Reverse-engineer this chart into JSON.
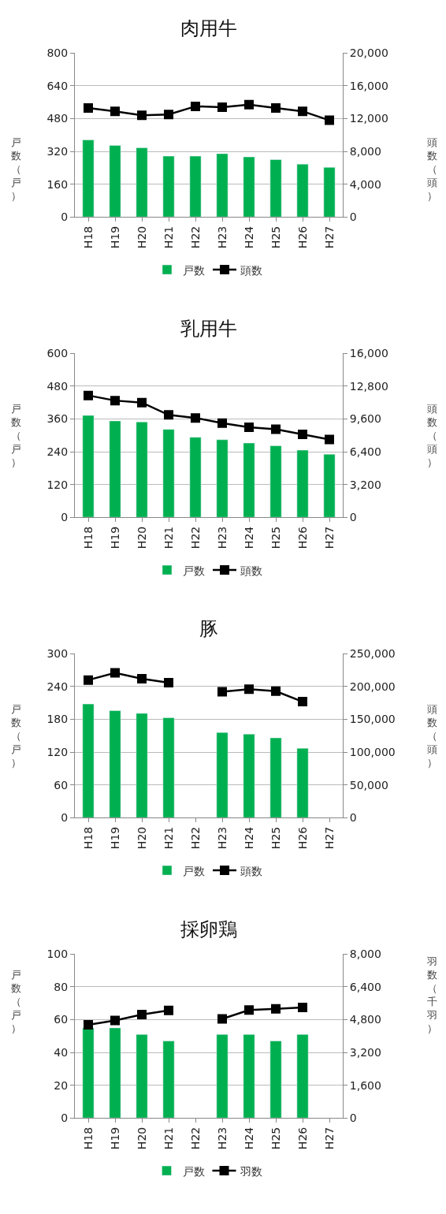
{
  "chart_data": [
    {
      "type": "bar",
      "title": "肉用牛",
      "ylabel": "戸数（戸）",
      "y2label": "頭数（頭）",
      "categories": [
        "H18",
        "H19",
        "H20",
        "H21",
        "H22",
        "H23",
        "H24",
        "H25",
        "H26",
        "H27"
      ],
      "series": [
        {
          "name": "戸数",
          "color": "#00b050",
          "values": [
            376,
            349,
            338,
            297,
            297,
            309,
            293,
            280,
            258,
            242
          ]
        },
        {
          "name": "頭数",
          "type": "line",
          "axis": "y2",
          "color": "#000000",
          "marker": "square",
          "values": [
            13300,
            12900,
            12400,
            12500,
            13500,
            13400,
            13700,
            13300,
            12900,
            11800
          ]
        }
      ],
      "ylim": [
        0,
        800
      ],
      "yticks": [
        0,
        160,
        320,
        480,
        640,
        800
      ],
      "y2lim": [
        0,
        20000
      ],
      "y2ticks": [
        0,
        {
          "value": 4000,
          "label": "4,000"
        },
        {
          "value": 8000,
          "label": "8,000"
        },
        {
          "value": 12000,
          "label": "12,000"
        },
        {
          "value": 16000,
          "label": "16,000"
        },
        {
          "value": 20000,
          "label": "20,000"
        }
      ],
      "grid": "y",
      "legend": "bottom"
    },
    {
      "type": "bar",
      "title": "乳用牛",
      "ylabel": "戸数（戸）",
      "y2label": "頭数（頭）",
      "categories": [
        "H18",
        "H19",
        "H20",
        "H21",
        "H22",
        "H23",
        "H24",
        "H25",
        "H26",
        "H27"
      ],
      "series": [
        {
          "name": "戸数",
          "color": "#00b050",
          "values": [
            373,
            353,
            349,
            322,
            293,
            284,
            272,
            262,
            246,
            231
          ]
        },
        {
          "name": "頭数",
          "type": "line",
          "axis": "y2",
          "color": "#000000",
          "marker": "square",
          "values": [
            11900,
            11400,
            11200,
            10000,
            9700,
            9200,
            8800,
            8600,
            8100,
            7600
          ]
        }
      ],
      "ylim": [
        0,
        600
      ],
      "yticks": [
        0,
        120,
        240,
        360,
        480,
        600
      ],
      "y2lim": [
        0,
        16000
      ],
      "y2ticks": [
        0,
        {
          "value": 3200,
          "label": "3,200"
        },
        {
          "value": 6400,
          "label": "6,400"
        },
        {
          "value": 9600,
          "label": "9,600"
        },
        {
          "value": 12800,
          "label": "12,800"
        },
        {
          "value": 16000,
          "label": "16,000"
        }
      ],
      "grid": "y",
      "legend": "bottom"
    },
    {
      "type": "bar",
      "title": "豚",
      "ylabel": "戸数（戸）",
      "y2label": "頭数（頭）",
      "categories": [
        "H18",
        "H19",
        "H20",
        "H21",
        "H22",
        "H23",
        "H24",
        "H25",
        "H26",
        "H27"
      ],
      "series": [
        {
          "name": "戸数",
          "color": "#00b050",
          "values": [
            208,
            196,
            191,
            183,
            null,
            156,
            153,
            146,
            127,
            null
          ]
        },
        {
          "name": "頭数",
          "type": "line",
          "axis": "y2",
          "color": "#000000",
          "marker": "square",
          "values": [
            210000,
            221000,
            212000,
            206000,
            null,
            192000,
            196000,
            193000,
            177000,
            null
          ]
        }
      ],
      "ylim": [
        0,
        300
      ],
      "yticks": [
        0,
        60,
        120,
        180,
        240,
        300
      ],
      "y2lim": [
        0,
        250000
      ],
      "y2ticks": [
        0,
        {
          "value": 50000,
          "label": "50,000"
        },
        {
          "value": 100000,
          "label": "100,000"
        },
        {
          "value": 150000,
          "label": "150,000"
        },
        {
          "value": 200000,
          "label": "200,000"
        },
        {
          "value": 250000,
          "label": "250,000"
        }
      ],
      "grid": "y",
      "legend": "bottom"
    },
    {
      "type": "bar",
      "title": "採卵鶏",
      "ylabel": "戸数（戸）",
      "y2label": "羽数（千羽）",
      "categories": [
        "H18",
        "H19",
        "H20",
        "H21",
        "H22",
        "H23",
        "H24",
        "H25",
        "H26",
        "H27"
      ],
      "series": [
        {
          "name": "戸数",
          "color": "#00b050",
          "values": [
            55,
            55,
            51,
            47,
            null,
            51,
            51,
            47,
            51,
            null
          ]
        },
        {
          "name": "羽数",
          "type": "line",
          "axis": "y2",
          "color": "#000000",
          "marker": "square",
          "values": [
            4550,
            4760,
            5050,
            5250,
            null,
            4840,
            5270,
            5330,
            5400,
            null
          ]
        }
      ],
      "ylim": [
        0,
        100
      ],
      "yticks": [
        0,
        20,
        40,
        60,
        80,
        100
      ],
      "y2lim": [
        0,
        8000
      ],
      "y2ticks": [
        0,
        {
          "value": 1600,
          "label": "1,600"
        },
        {
          "value": 3200,
          "label": "3,200"
        },
        {
          "value": 4800,
          "label": "4,800"
        },
        {
          "value": 6400,
          "label": "6,400"
        },
        {
          "value": 8000,
          "label": "8,000"
        }
      ],
      "grid": "y",
      "legend": "bottom"
    }
  ]
}
